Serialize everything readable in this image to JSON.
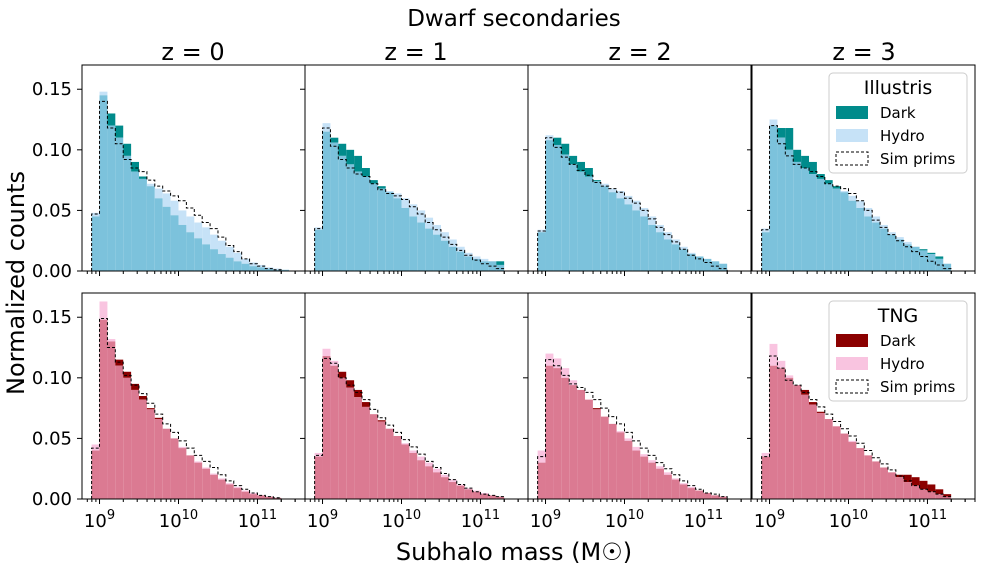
{
  "figure": {
    "suptitle": "Dwarf secondaries",
    "ylabel": "Normalized counts",
    "xlabel": "Subhalo mass (M☉)"
  },
  "panel_titles": [
    "z = 0",
    "z = 1",
    "z = 2",
    "z = 3"
  ],
  "colors": {
    "illustris_dark": "#008b8b",
    "illustris_hydro": "#c6e2f7",
    "illustris_overlap": "#7cc2dc",
    "tng_dark": "#8b0000",
    "tng_hydro": "#f9c4e0",
    "tng_overlap": "#db7a92"
  },
  "legends": [
    {
      "title": "Illustris",
      "entries": [
        "Dark",
        "Hydro",
        "Sim prims"
      ]
    },
    {
      "title": "TNG",
      "entries": [
        "Dark",
        "Hydro",
        "Sim prims"
      ]
    }
  ],
  "chart_data": {
    "type": "bar",
    "histogram": "step",
    "x_scale": "log",
    "xlim": [
      600000000.0,
      400000000000.0
    ],
    "ylim": [
      0,
      0.17
    ],
    "bin_edges_log10": [
      8.9,
      9.0,
      9.1,
      9.2,
      9.3,
      9.4,
      9.5,
      9.6,
      9.7,
      9.8,
      9.9,
      10.0,
      10.1,
      10.2,
      10.3,
      10.4,
      10.5,
      10.6,
      10.7,
      10.8,
      10.9,
      11.0,
      11.1,
      11.2,
      11.3,
      11.4
    ],
    "xticks": [
      1000000000.0,
      10000000000.0,
      100000000000.0
    ],
    "xtick_labels": [
      [
        "10",
        "9"
      ],
      [
        "10",
        "10"
      ],
      [
        "10",
        "11"
      ]
    ],
    "yticks": [
      0.0,
      0.05,
      0.1,
      0.15
    ],
    "ytick_labels": [
      "0.00",
      "0.05",
      "0.10",
      "0.15"
    ],
    "rows": [
      {
        "sim": "Illustris",
        "panels": [
          {
            "redshift": "z = 0",
            "dark": [
              0.045,
              0.145,
              0.13,
              0.12,
              0.105,
              0.09,
              0.078,
              0.07,
              0.06,
              0.053,
              0.046,
              0.038,
              0.032,
              0.027,
              0.022,
              0.018,
              0.014,
              0.011,
              0.008,
              0.006,
              0.004,
              0.003,
              0.002,
              0.001,
              0.001
            ],
            "hydro": [
              0.048,
              0.148,
              0.12,
              0.11,
              0.095,
              0.082,
              0.076,
              0.072,
              0.068,
              0.064,
              0.058,
              0.05,
              0.045,
              0.04,
              0.036,
              0.03,
              0.025,
              0.02,
              0.015,
              0.01,
              0.007,
              0.005,
              0.003,
              0.002,
              0.001
            ],
            "sim": [
              0.047,
              0.14,
              0.118,
              0.105,
              0.092,
              0.085,
              0.082,
              0.075,
              0.07,
              0.066,
              0.062,
              0.058,
              0.052,
              0.046,
              0.04,
              0.035,
              0.028,
              0.021,
              0.016,
              0.01,
              0.006,
              0.004,
              0.002,
              0.001,
              0.0
            ]
          },
          {
            "redshift": "z = 1",
            "dark": [
              0.034,
              0.115,
              0.11,
              0.105,
              0.1,
              0.095,
              0.085,
              0.075,
              0.07,
              0.065,
              0.06,
              0.052,
              0.045,
              0.04,
              0.035,
              0.03,
              0.025,
              0.02,
              0.016,
              0.012,
              0.01,
              0.008,
              0.008,
              0.008,
              0.0
            ],
            "hydro": [
              0.036,
              0.122,
              0.106,
              0.095,
              0.088,
              0.082,
              0.078,
              0.072,
              0.068,
              0.066,
              0.064,
              0.06,
              0.055,
              0.05,
              0.044,
              0.038,
              0.032,
              0.026,
              0.02,
              0.015,
              0.012,
              0.01,
              0.008,
              0.005,
              0.0
            ],
            "sim": [
              0.035,
              0.118,
              0.103,
              0.092,
              0.085,
              0.08,
              0.078,
              0.072,
              0.067,
              0.064,
              0.062,
              0.059,
              0.053,
              0.047,
              0.04,
              0.034,
              0.028,
              0.022,
              0.017,
              0.013,
              0.009,
              0.006,
              0.004,
              0.002,
              0.0
            ]
          },
          {
            "redshift": "z = 2",
            "dark": [
              0.032,
              0.108,
              0.11,
              0.105,
              0.095,
              0.09,
              0.085,
              0.075,
              0.07,
              0.065,
              0.06,
              0.055,
              0.05,
              0.045,
              0.038,
              0.032,
              0.026,
              0.022,
              0.018,
              0.014,
              0.012,
              0.01,
              0.008,
              0.006,
              0.0
            ],
            "hydro": [
              0.034,
              0.112,
              0.104,
              0.096,
              0.088,
              0.082,
              0.078,
              0.074,
              0.072,
              0.068,
              0.066,
              0.062,
              0.058,
              0.052,
              0.045,
              0.038,
              0.032,
              0.026,
              0.02,
              0.015,
              0.012,
              0.01,
              0.008,
              0.006,
              0.0
            ],
            "sim": [
              0.033,
              0.11,
              0.102,
              0.094,
              0.088,
              0.083,
              0.079,
              0.073,
              0.07,
              0.068,
              0.065,
              0.06,
              0.056,
              0.05,
              0.043,
              0.036,
              0.03,
              0.024,
              0.018,
              0.013,
              0.01,
              0.007,
              0.004,
              0.002,
              0.0
            ]
          },
          {
            "redshift": "z = 3",
            "dark": [
              0.032,
              0.12,
              0.118,
              0.118,
              0.1,
              0.095,
              0.09,
              0.08,
              0.075,
              0.07,
              0.065,
              0.058,
              0.052,
              0.045,
              0.04,
              0.035,
              0.03,
              0.026,
              0.022,
              0.02,
              0.018,
              0.015,
              0.012,
              0.006,
              0.0
            ],
            "hydro": [
              0.035,
              0.125,
              0.11,
              0.1,
              0.09,
              0.085,
              0.08,
              0.076,
              0.072,
              0.068,
              0.066,
              0.062,
              0.058,
              0.052,
              0.045,
              0.038,
              0.032,
              0.028,
              0.024,
              0.02,
              0.017,
              0.014,
              0.01,
              0.006,
              0.0
            ],
            "sim": [
              0.034,
              0.12,
              0.105,
              0.095,
              0.088,
              0.085,
              0.082,
              0.078,
              0.072,
              0.07,
              0.068,
              0.064,
              0.058,
              0.05,
              0.042,
              0.036,
              0.03,
              0.025,
              0.02,
              0.016,
              0.012,
              0.008,
              0.005,
              0.002,
              0.0
            ]
          }
        ]
      },
      {
        "sim": "TNG",
        "panels": [
          {
            "redshift": "z = 0",
            "dark": [
              0.04,
              0.148,
              0.13,
              0.115,
              0.105,
              0.095,
              0.085,
              0.075,
              0.067,
              0.058,
              0.05,
              0.042,
              0.036,
              0.03,
              0.025,
              0.02,
              0.016,
              0.012,
              0.009,
              0.006,
              0.004,
              0.003,
              0.002,
              0.001,
              0.0
            ],
            "hydro": [
              0.045,
              0.163,
              0.132,
              0.11,
              0.1,
              0.09,
              0.082,
              0.074,
              0.066,
              0.058,
              0.05,
              0.043,
              0.036,
              0.031,
              0.026,
              0.021,
              0.017,
              0.013,
              0.01,
              0.007,
              0.005,
              0.003,
              0.002,
              0.001,
              0.0
            ],
            "sim": [
              0.042,
              0.149,
              0.125,
              0.113,
              0.102,
              0.094,
              0.087,
              0.079,
              0.07,
              0.062,
              0.055,
              0.048,
              0.042,
              0.036,
              0.031,
              0.026,
              0.02,
              0.015,
              0.011,
              0.008,
              0.005,
              0.003,
              0.002,
              0.001,
              0.0
            ]
          },
          {
            "redshift": "z = 1",
            "dark": [
              0.035,
              0.118,
              0.11,
              0.105,
              0.098,
              0.09,
              0.08,
              0.07,
              0.065,
              0.058,
              0.052,
              0.045,
              0.038,
              0.032,
              0.027,
              0.022,
              0.018,
              0.014,
              0.011,
              0.008,
              0.006,
              0.004,
              0.003,
              0.002,
              0.0
            ],
            "hydro": [
              0.038,
              0.124,
              0.114,
              0.1,
              0.092,
              0.084,
              0.076,
              0.07,
              0.064,
              0.058,
              0.052,
              0.046,
              0.04,
              0.035,
              0.03,
              0.025,
              0.02,
              0.016,
              0.012,
              0.009,
              0.007,
              0.005,
              0.003,
              0.002,
              0.0
            ],
            "sim": [
              0.036,
              0.116,
              0.112,
              0.1,
              0.094,
              0.088,
              0.082,
              0.074,
              0.067,
              0.061,
              0.055,
              0.049,
              0.043,
              0.037,
              0.031,
              0.026,
              0.021,
              0.016,
              0.012,
              0.009,
              0.006,
              0.004,
              0.003,
              0.002,
              0.0
            ]
          },
          {
            "redshift": "z = 2",
            "dark": [
              0.03,
              0.11,
              0.108,
              0.1,
              0.094,
              0.09,
              0.082,
              0.075,
              0.068,
              0.062,
              0.055,
              0.048,
              0.04,
              0.035,
              0.03,
              0.025,
              0.02,
              0.016,
              0.012,
              0.009,
              0.007,
              0.005,
              0.003,
              0.002,
              0.0
            ],
            "hydro": [
              0.04,
              0.12,
              0.116,
              0.108,
              0.098,
              0.09,
              0.082,
              0.074,
              0.068,
              0.062,
              0.056,
              0.05,
              0.043,
              0.037,
              0.032,
              0.027,
              0.022,
              0.017,
              0.013,
              0.01,
              0.007,
              0.005,
              0.003,
              0.002,
              0.0
            ],
            "sim": [
              0.035,
              0.115,
              0.11,
              0.102,
              0.095,
              0.092,
              0.088,
              0.082,
              0.075,
              0.068,
              0.062,
              0.055,
              0.048,
              0.042,
              0.036,
              0.03,
              0.025,
              0.02,
              0.015,
              0.011,
              0.008,
              0.005,
              0.004,
              0.002,
              0.0
            ]
          },
          {
            "redshift": "z = 3",
            "dark": [
              0.035,
              0.11,
              0.108,
              0.1,
              0.094,
              0.09,
              0.08,
              0.072,
              0.066,
              0.06,
              0.054,
              0.047,
              0.042,
              0.036,
              0.031,
              0.026,
              0.022,
              0.02,
              0.02,
              0.018,
              0.015,
              0.012,
              0.008,
              0.004,
              0.0
            ],
            "hydro": [
              0.038,
              0.128,
              0.114,
              0.102,
              0.094,
              0.086,
              0.078,
              0.071,
              0.066,
              0.06,
              0.054,
              0.048,
              0.042,
              0.036,
              0.031,
              0.026,
              0.022,
              0.018,
              0.014,
              0.011,
              0.008,
              0.006,
              0.004,
              0.002,
              0.0
            ],
            "sim": [
              0.035,
              0.118,
              0.108,
              0.098,
              0.094,
              0.088,
              0.082,
              0.076,
              0.07,
              0.064,
              0.058,
              0.052,
              0.046,
              0.04,
              0.034,
              0.029,
              0.024,
              0.019,
              0.015,
              0.011,
              0.008,
              0.006,
              0.004,
              0.002,
              0.0
            ]
          }
        ]
      }
    ]
  }
}
